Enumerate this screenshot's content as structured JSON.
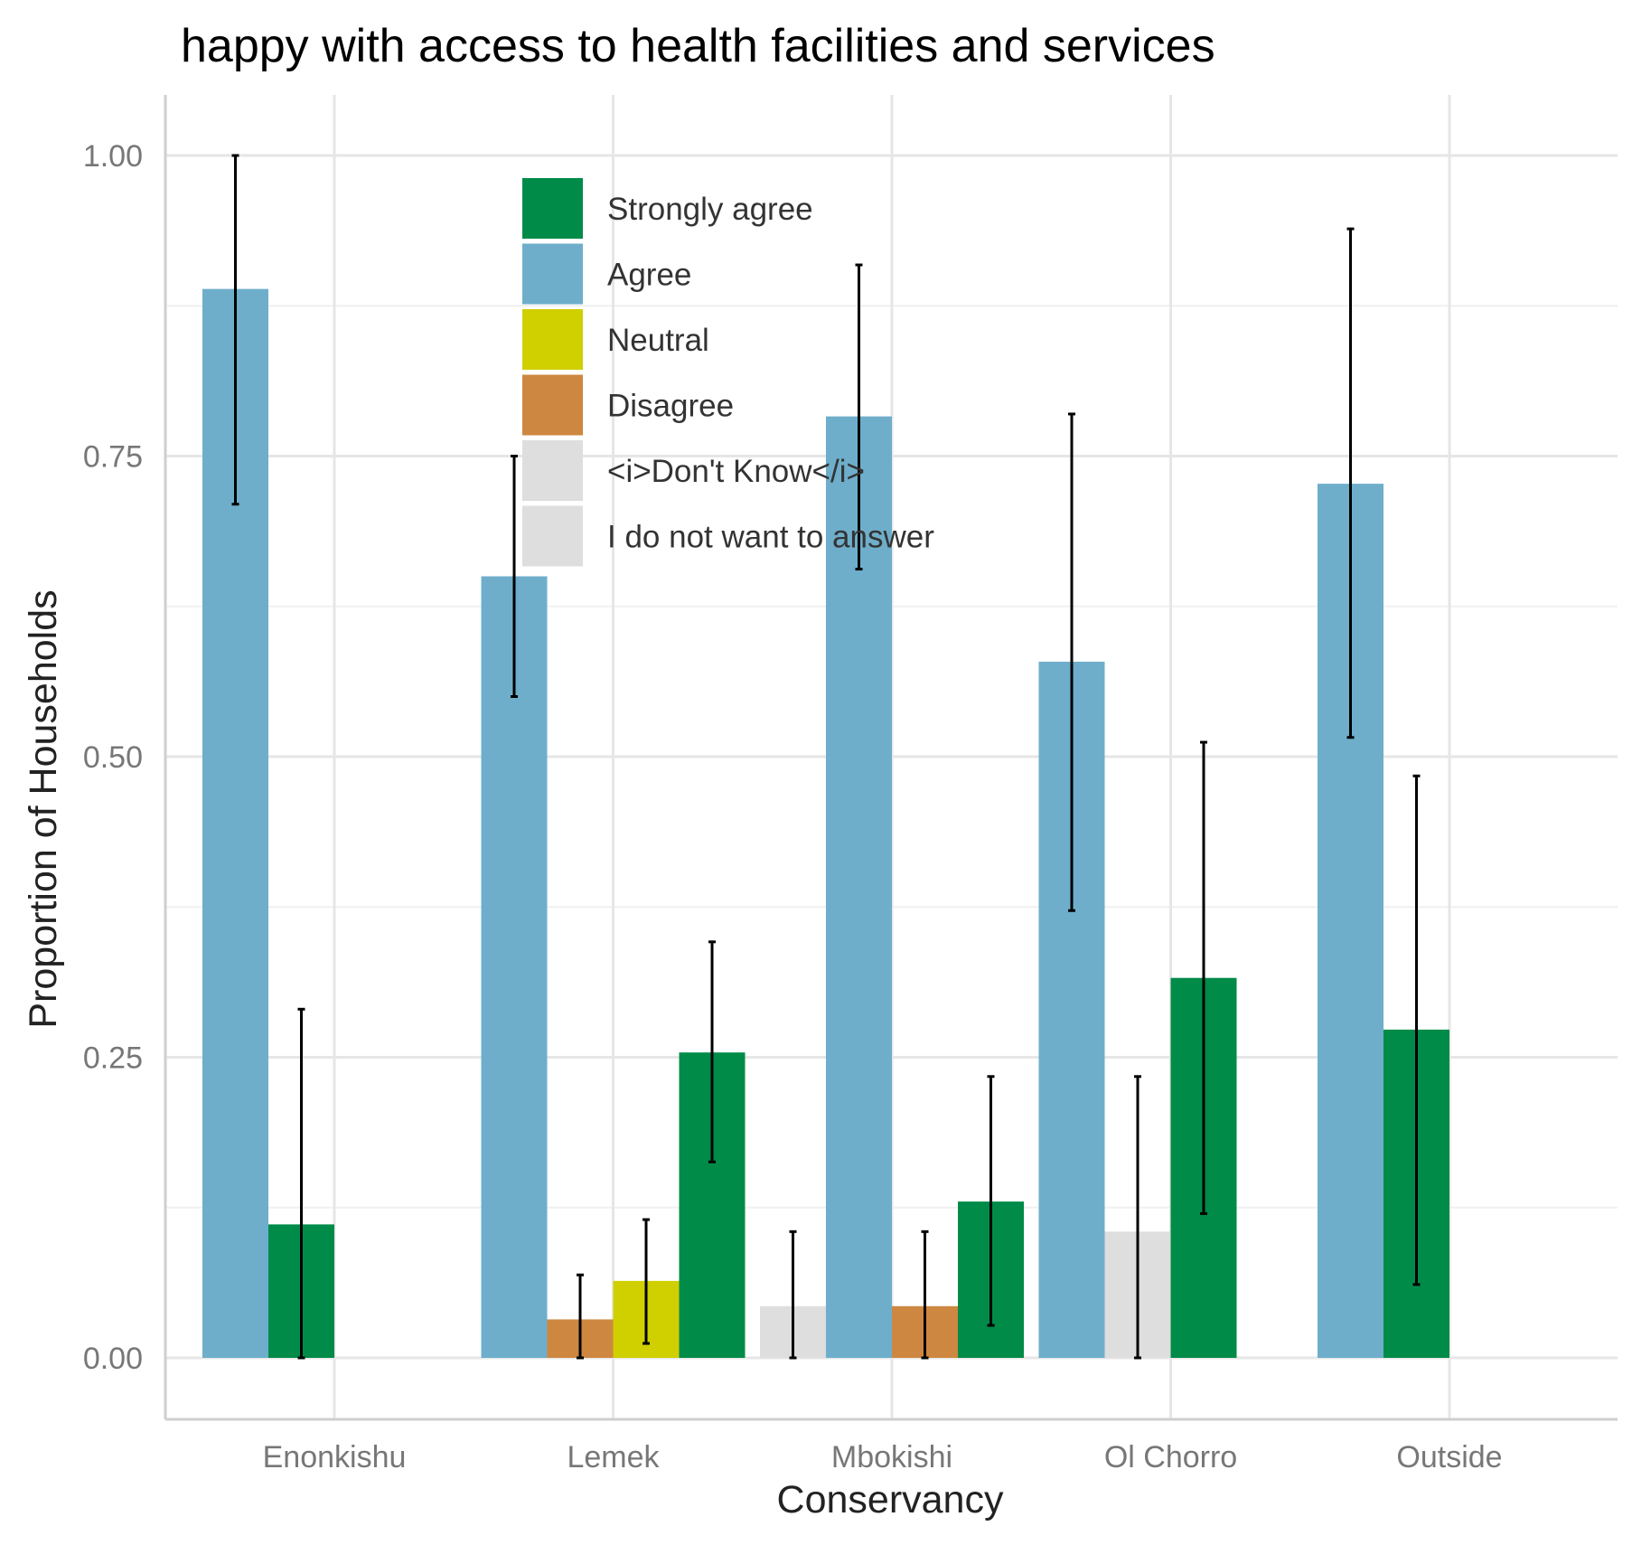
{
  "chart_data": {
    "type": "bar",
    "title": "happy with access to health facilities and services",
    "xlabel": "Conservancy",
    "ylabel": "Proportion of Households",
    "ylim": [
      -0.05,
      1.05
    ],
    "yticks": [
      0.0,
      0.25,
      0.5,
      0.75,
      1.0
    ],
    "ytick_labels": [
      "0.00",
      "0.25",
      "0.50",
      "0.75",
      "1.00"
    ],
    "categories": [
      "Enonkishu",
      "Lemek",
      "Mbokishi",
      "Ol Chorro",
      "Outside"
    ],
    "grid": true,
    "legend_position": "inside-top-left",
    "legend": [
      {
        "label": "Strongly agree",
        "color": "#008b48"
      },
      {
        "label": "Agree",
        "color": "#6eaecb"
      },
      {
        "label": "Neutral",
        "color": "#d0cf00"
      },
      {
        "label": "Disagree",
        "color": "#ce8740"
      },
      {
        "label": "<i>Don't Know</i>",
        "color": "#dedede"
      },
      {
        "label": "I do not want to answer",
        "color": "#dedede"
      }
    ],
    "series": [
      {
        "category": "Enonkishu",
        "response": "Agree",
        "value": 0.889,
        "err_low": 0.71,
        "err_high": 1.0
      },
      {
        "category": "Enonkishu",
        "response": "Strongly agree",
        "value": 0.111,
        "err_low": 0.0,
        "err_high": 0.29
      },
      {
        "category": "Lemek",
        "response": "Agree",
        "value": 0.65,
        "err_low": 0.55,
        "err_high": 0.75
      },
      {
        "category": "Lemek",
        "response": "Disagree",
        "value": 0.032,
        "err_low": 0.0,
        "err_high": 0.069
      },
      {
        "category": "Lemek",
        "response": "Neutral",
        "value": 0.064,
        "err_low": 0.012,
        "err_high": 0.115
      },
      {
        "category": "Lemek",
        "response": "Strongly agree",
        "value": 0.254,
        "err_low": 0.163,
        "err_high": 0.346
      },
      {
        "category": "Mbokishi",
        "response": "<i>Don't Know</i>",
        "value": 0.043,
        "err_low": 0.0,
        "err_high": 0.105
      },
      {
        "category": "Mbokishi",
        "response": "Agree",
        "value": 0.783,
        "err_low": 0.656,
        "err_high": 0.909
      },
      {
        "category": "Mbokishi",
        "response": "Disagree",
        "value": 0.043,
        "err_low": 0.0,
        "err_high": 0.105
      },
      {
        "category": "Mbokishi",
        "response": "Strongly agree",
        "value": 0.13,
        "err_low": 0.027,
        "err_high": 0.234
      },
      {
        "category": "Ol Chorro",
        "response": "Agree",
        "value": 0.579,
        "err_low": 0.372,
        "err_high": 0.785
      },
      {
        "category": "Ol Chorro",
        "response": "<i>Don't Know</i>",
        "value": 0.105,
        "err_low": 0.0,
        "err_high": 0.234
      },
      {
        "category": "Ol Chorro",
        "response": "Strongly agree",
        "value": 0.316,
        "err_low": 0.12,
        "err_high": 0.512
      },
      {
        "category": "Outside",
        "response": "Agree",
        "value": 0.727,
        "err_low": 0.516,
        "err_high": 0.939
      },
      {
        "category": "Outside",
        "response": "Strongly agree",
        "value": 0.273,
        "err_low": 0.061,
        "err_high": 0.484
      }
    ]
  }
}
